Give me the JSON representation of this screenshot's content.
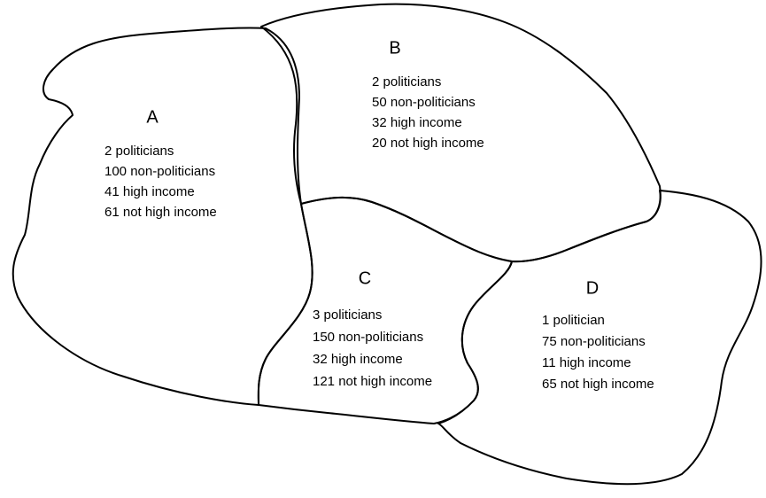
{
  "regions": [
    {
      "label": "A",
      "lines": [
        "2 politicians",
        "100 non-politicians",
        "41 high income",
        "61 not high income"
      ]
    },
    {
      "label": "B",
      "lines": [
        "2 politicians",
        "50 non-politicians",
        "32 high income",
        "20 not high income"
      ]
    },
    {
      "label": "C",
      "lines": [
        "3 politicians",
        "150 non-politicians",
        "32 high income",
        "121 not high income"
      ]
    },
    {
      "label": "D",
      "lines": [
        "1 politician",
        "75 non-politicians",
        "11 high income",
        "65 not high income"
      ]
    }
  ]
}
